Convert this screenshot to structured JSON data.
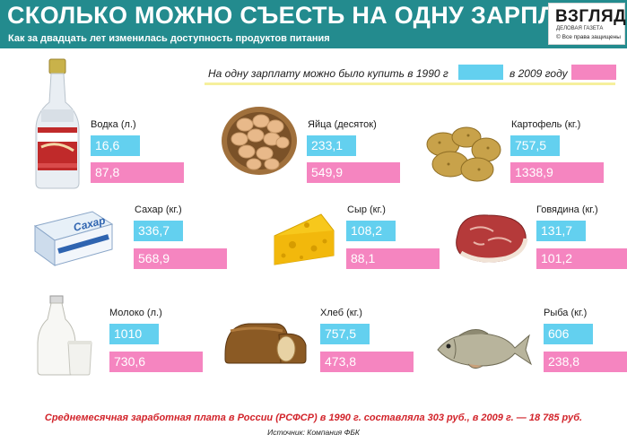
{
  "header": {
    "title": "СКОЛЬКО МОЖНО СЪЕСТЬ НА ОДНУ ЗАРПЛАТУ",
    "subtitle": "Как за двадцать лет изменилась доступность продуктов питания"
  },
  "logo": {
    "name": "ВЗГЛЯД",
    "tagline": "ДЕЛОВАЯ ГАЗЕТА",
    "rights": "Все права защищены"
  },
  "legend": {
    "label_1990": "На одну зарплату можно было купить в 1990 г",
    "label_2009": "в 2009 году",
    "color_1990": "#63d0ef",
    "color_2009": "#f585c0"
  },
  "items": [
    {
      "label": "Водка (л.)",
      "v1990": "16,6",
      "v2009": "87,8",
      "icon": "vodka-bottle-icon"
    },
    {
      "label": "Яйца (десяток)",
      "v1990": "233,1",
      "v2009": "549,9",
      "icon": "eggs-basket-icon"
    },
    {
      "label": "Картофель (кг.)",
      "v1990": "757,5",
      "v2009": "1338,9",
      "icon": "potatoes-icon"
    },
    {
      "label": "Сахар (кг.)",
      "v1990": "336,7",
      "v2009": "568,9",
      "icon": "sugar-box-icon",
      "box_text": "Сахар"
    },
    {
      "label": "Сыр (кг.)",
      "v1990": "108,2",
      "v2009": "88,1",
      "icon": "cheese-icon"
    },
    {
      "label": "Говядина (кг.)",
      "v1990": "131,7",
      "v2009": "101,2",
      "icon": "beef-icon"
    },
    {
      "label": "Молоко (л.)",
      "v1990": "1010",
      "v2009": "730,6",
      "icon": "milk-icon"
    },
    {
      "label": "Хлеб (кг.)",
      "v1990": "757,5",
      "v2009": "473,8",
      "icon": "bread-icon"
    },
    {
      "label": "Рыба (кг.)",
      "v1990": "606",
      "v2009": "238,8",
      "icon": "fish-icon"
    }
  ],
  "footer": {
    "note": "Среднемесячная заработная плата в России (РСФСР) в 1990 г. составляла 303 руб., в 2009 г. — 18 785 руб.",
    "source": "Источник: Компания ФБК"
  }
}
